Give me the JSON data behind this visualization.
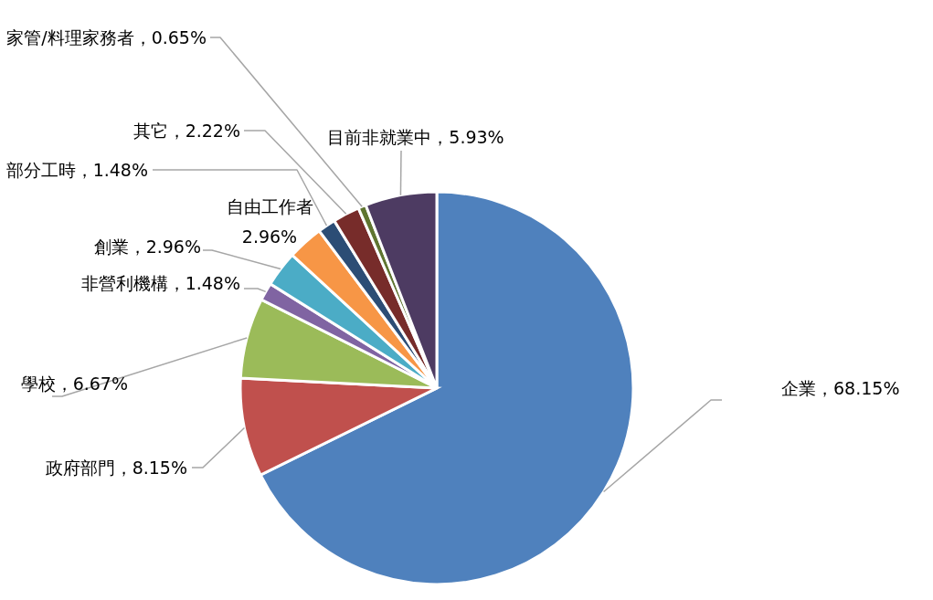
{
  "chart_data": {
    "type": "pie",
    "categories": [
      "企業",
      "政府部門",
      "學校",
      "非營利機構",
      "創業",
      "自由工作者",
      "部分工時",
      "其它",
      "家管/料理家務者",
      "目前非就業中"
    ],
    "values": [
      68.15,
      8.15,
      6.67,
      1.48,
      2.96,
      2.96,
      1.48,
      2.22,
      0.65,
      5.93
    ],
    "value_labels": [
      "68.15%",
      "8.15%",
      "6.67%",
      "1.48%",
      "2.96%",
      "2.96%",
      "1.48%",
      "2.22%",
      "0.65%",
      "5.93%"
    ],
    "colors": [
      "#4f81bd",
      "#c0504d",
      "#9bbb59",
      "#8064a2",
      "#4bacc6",
      "#f79646",
      "#2c4d75",
      "#772c2a",
      "#5f7530",
      "#4d3b62"
    ]
  }
}
